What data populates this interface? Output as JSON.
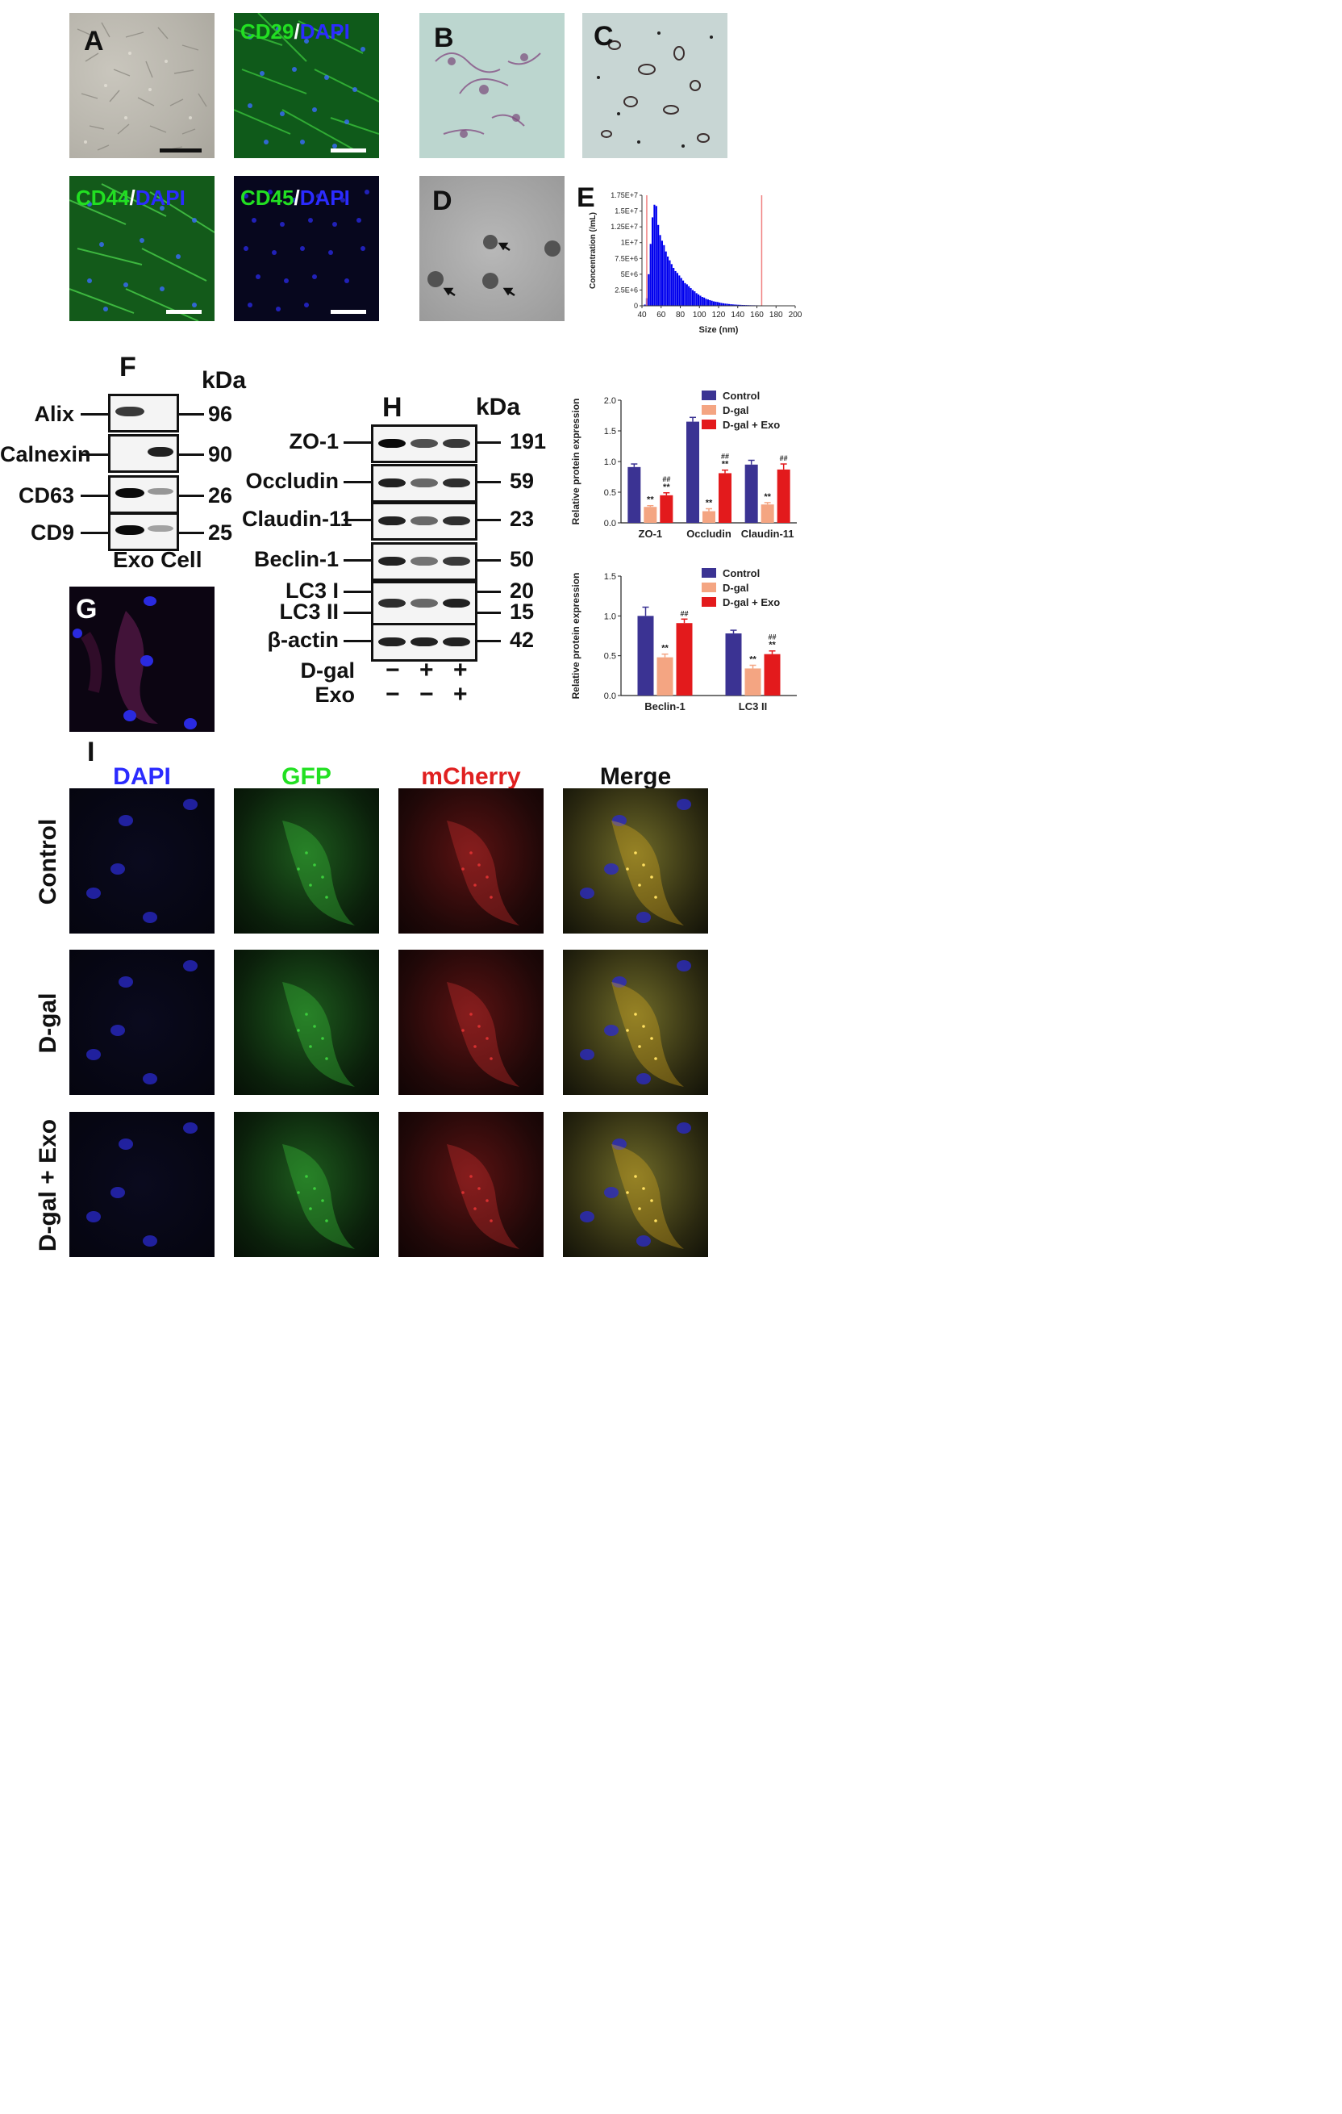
{
  "panels": {
    "A": "A",
    "B": "B",
    "C": "C",
    "D": "D",
    "E": "E",
    "F": "F",
    "G": "G",
    "H": "H",
    "I": "I"
  },
  "stains": {
    "cd29_marker": "CD29",
    "cd44_marker": "CD44",
    "cd45_marker": "CD45",
    "dapi": "DAPI",
    "slash": "/"
  },
  "colors": {
    "marker_green": "#22e022",
    "dapi_blue": "#2b2bff",
    "control_bar": "#3b3393",
    "dgal_bar": "#f4a582",
    "dgal_exo_bar": "#e31a1c",
    "nta_bar": "#0000ee",
    "nta_line": "#f08080"
  },
  "western_F": {
    "kda_header": "kDa",
    "rows": [
      {
        "label": "Alix",
        "kda": "96"
      },
      {
        "label": "Calnexin",
        "kda": "90"
      },
      {
        "label": "CD63",
        "kda": "26"
      },
      {
        "label": "CD9",
        "kda": "25"
      }
    ],
    "lane_labels": "Exo Cell"
  },
  "western_H": {
    "kda_header": "kDa",
    "rows": [
      {
        "label": "ZO-1",
        "kda": "191"
      },
      {
        "label": "Occludin",
        "kda": "59"
      },
      {
        "label": "Claudin-11",
        "kda": "23"
      },
      {
        "label": "Beclin-1",
        "kda": "50"
      },
      {
        "label": "LC3 I",
        "kda": "20"
      },
      {
        "label": "LC3 II",
        "kda": "15"
      },
      {
        "label": "β-actin",
        "kda": "42"
      }
    ],
    "treatments": [
      {
        "label": "D-gal",
        "signs": [
          "−",
          "+",
          "+"
        ]
      },
      {
        "label": "Exo",
        "signs": [
          "−",
          "−",
          "+"
        ]
      }
    ]
  },
  "panel_I": {
    "columns": [
      "DAPI",
      "GFP",
      "mCherry",
      "Merge"
    ],
    "rows": [
      "Control",
      "D-gal",
      "D-gal + Exo"
    ]
  },
  "chart_data": [
    {
      "type": "bar",
      "title": "",
      "xlabel": "Size (nm)",
      "ylabel": "Concentration (/mL)",
      "xlim": [
        40,
        200
      ],
      "ylim": [
        0,
        17500000
      ],
      "xticks": [
        "40",
        "60",
        "80",
        "100",
        "120",
        "140",
        "160",
        "180",
        "200"
      ],
      "yticks": [
        "0",
        "2.5E+6",
        "5E+6",
        "7.5E+6",
        "1E+7",
        "1.25E+7",
        "1.5E+7",
        "1.75E+7"
      ],
      "vlines": [
        45,
        165
      ],
      "x": [
        43,
        45,
        47,
        49,
        51,
        53,
        55,
        57,
        59,
        61,
        63,
        65,
        67,
        69,
        71,
        73,
        75,
        77,
        79,
        81,
        83,
        85,
        87,
        89,
        91,
        93,
        95,
        97,
        99,
        101,
        103,
        105,
        107,
        109,
        111,
        113,
        115,
        117,
        119,
        121,
        123,
        125,
        127,
        129,
        131,
        133,
        135,
        137,
        139,
        141,
        143,
        145,
        147,
        149,
        151,
        153,
        155,
        157,
        159,
        161,
        163,
        165,
        167,
        169,
        171,
        173,
        175,
        177,
        179,
        181,
        183,
        185,
        187,
        189,
        191,
        193,
        195,
        197,
        199
      ],
      "values": [
        200000,
        1200000,
        5000000,
        9800000,
        14000000,
        16000000,
        15800000,
        12800000,
        11200000,
        10300000,
        9600000,
        8600000,
        7800000,
        7200000,
        6600000,
        6000000,
        5500000,
        5200000,
        4800000,
        4400000,
        4000000,
        3600000,
        3400000,
        3100000,
        2800000,
        2500000,
        2300000,
        2000000,
        1800000,
        1600000,
        1400000,
        1300000,
        1100000,
        1000000,
        900000,
        800000,
        700000,
        650000,
        600000,
        520000,
        450000,
        400000,
        350000,
        320000,
        280000,
        250000,
        220000,
        200000,
        180000,
        160000,
        150000,
        130000,
        120000,
        110000,
        100000,
        90000,
        85000,
        80000,
        75000,
        70000,
        65000,
        60000,
        55000,
        50000,
        48000,
        45000,
        42000,
        40000,
        38000,
        35000,
        33000,
        30000,
        28000,
        26000,
        24000,
        22000,
        20000,
        18000,
        16000
      ]
    },
    {
      "type": "bar",
      "title": "",
      "xlabel": "",
      "ylabel": "Relative protein expression",
      "ylim": [
        0,
        2.0
      ],
      "yticks": [
        "0.0",
        "0.5",
        "1.0",
        "1.5",
        "2.0"
      ],
      "categories": [
        "ZO-1",
        "Occludin",
        "Claudin-11"
      ],
      "legend_position": "top-right",
      "series": [
        {
          "name": "Control",
          "values": [
            0.91,
            1.65,
            0.95
          ],
          "errors": [
            0.05,
            0.07,
            0.07
          ],
          "marks": [
            "",
            "",
            ""
          ]
        },
        {
          "name": "D-gal",
          "values": [
            0.26,
            0.19,
            0.3
          ],
          "errors": [
            0.02,
            0.04,
            0.03
          ],
          "marks": [
            "**",
            "**",
            "**"
          ]
        },
        {
          "name": "D-gal + Exo",
          "values": [
            0.45,
            0.81,
            0.87
          ],
          "errors": [
            0.04,
            0.05,
            0.09
          ],
          "marks": [
            "##\n**",
            "##\n**",
            "##"
          ]
        }
      ]
    },
    {
      "type": "bar",
      "title": "",
      "xlabel": "",
      "ylabel": "Relative protein expression",
      "ylim": [
        0,
        1.5
      ],
      "yticks": [
        "0.0",
        "0.5",
        "1.0",
        "1.5"
      ],
      "categories": [
        "Beclin-1",
        "LC3 II"
      ],
      "legend_position": "top-right",
      "series": [
        {
          "name": "Control",
          "values": [
            1.0,
            0.78
          ],
          "errors": [
            0.11,
            0.04
          ],
          "marks": [
            "",
            ""
          ]
        },
        {
          "name": "D-gal",
          "values": [
            0.48,
            0.34
          ],
          "errors": [
            0.04,
            0.04
          ],
          "marks": [
            "**",
            "**"
          ]
        },
        {
          "name": "D-gal + Exo",
          "values": [
            0.91,
            0.52
          ],
          "errors": [
            0.05,
            0.04
          ],
          "marks": [
            "##",
            "##\n**"
          ]
        }
      ]
    }
  ]
}
